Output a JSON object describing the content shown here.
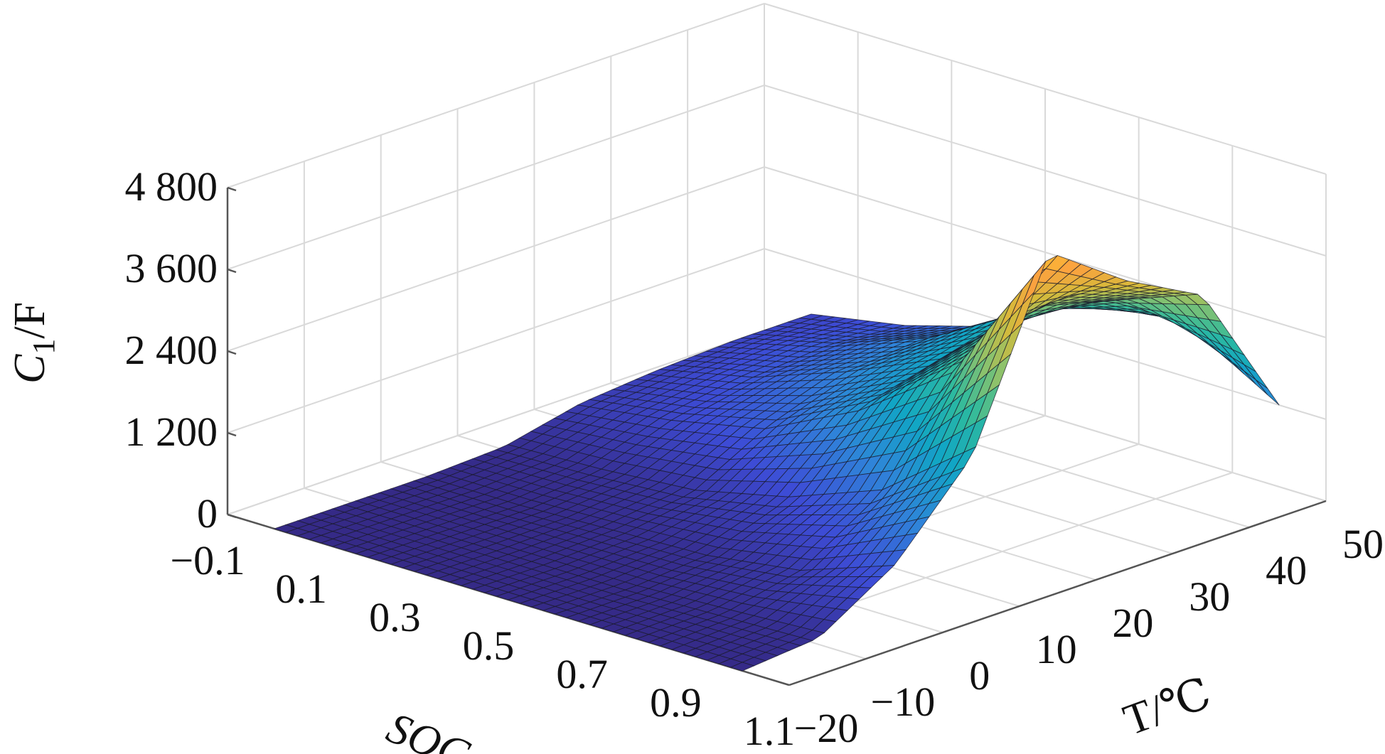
{
  "chart_data": {
    "type": "surface",
    "title": "",
    "zlabel": {
      "main": "C",
      "sub": "1",
      "unit": "/F"
    },
    "xlabel": "SOC",
    "ylabel": "T/℃",
    "x_ticks": [
      "−0.1",
      "0.1",
      "0.3",
      "0.5",
      "0.7",
      "0.9",
      "1.1"
    ],
    "x_tick_values": [
      -0.1,
      0.1,
      0.3,
      0.5,
      0.7,
      0.9,
      1.1
    ],
    "y_ticks": [
      "−20",
      "−10",
      "0",
      "10",
      "20",
      "30",
      "40",
      "50"
    ],
    "y_tick_values": [
      -20,
      -10,
      0,
      10,
      20,
      30,
      40,
      50
    ],
    "z_ticks": [
      "0",
      "1 200",
      "2 400",
      "3 600",
      "4 800"
    ],
    "z_tick_values": [
      0,
      1200,
      2400,
      3600,
      4800
    ],
    "xlim": [
      -0.1,
      1.1
    ],
    "ylim": [
      -20,
      50
    ],
    "zlim": [
      0,
      4800
    ],
    "grid": true,
    "colormap": [
      "#352a87",
      "#3d4cd6",
      "#2f84d9",
      "#11a5c5",
      "#2dba9e",
      "#8dc26c",
      "#d6ba3a",
      "#fca13f",
      "#f6e023"
    ],
    "soc_samples": [
      0.0,
      0.2,
      0.4,
      0.6,
      0.8,
      1.0
    ],
    "temperature_samples": [
      -20,
      -10,
      0,
      10,
      20,
      30,
      40,
      50
    ],
    "c1_values": [
      [
        0,
        0,
        0,
        50,
        300,
        400,
        450,
        450
      ],
      [
        0,
        0,
        0,
        100,
        500,
        700,
        800,
        700
      ],
      [
        0,
        0,
        50,
        200,
        800,
        1200,
        1300,
        1100
      ],
      [
        0,
        0,
        100,
        500,
        1500,
        1800,
        2100,
        1900
      ],
      [
        0,
        50,
        300,
        1000,
        2500,
        3000,
        2700,
        2000
      ],
      [
        0,
        100,
        800,
        2000,
        4600,
        3800,
        3200,
        1200
      ]
    ]
  }
}
